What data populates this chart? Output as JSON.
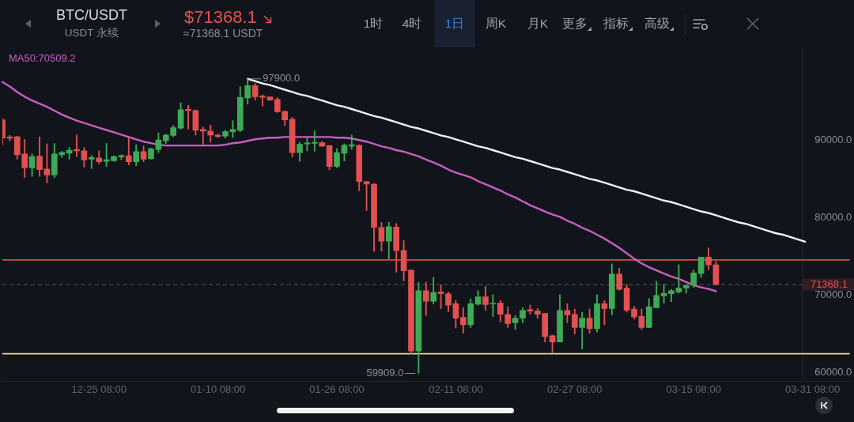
{
  "chart_data": {
    "type": "candlestick",
    "title": "BTC/USDT",
    "subtitle": "USDT 永续",
    "categories": [
      null,
      null,
      null,
      null,
      null,
      null,
      null,
      null,
      null,
      null,
      null,
      null,
      null,
      "12-25 08:00",
      null,
      null,
      null,
      null,
      null,
      null,
      null,
      null,
      null,
      null,
      null,
      null,
      null,
      null,
      null,
      "01-10 08:00",
      null,
      null,
      null,
      null,
      null,
      null,
      null,
      null,
      null,
      null,
      null,
      null,
      null,
      null,
      null,
      "01-26 08:00",
      null,
      null,
      null,
      null,
      null,
      null,
      null,
      null,
      null,
      null,
      null,
      null,
      null,
      null,
      null,
      "02-11 08:00",
      null,
      null,
      null,
      null,
      null,
      null,
      null,
      null,
      null,
      null,
      null,
      null,
      null,
      null,
      null,
      "02-27 08:00",
      null,
      null,
      null,
      null,
      null,
      null,
      null,
      null,
      null,
      null,
      null,
      null,
      null,
      null,
      null,
      "03-15 08:00",
      null,
      null,
      null,
      null,
      null,
      null,
      null,
      null,
      null,
      null,
      null,
      null,
      null,
      null,
      null,
      "03-31 08:00",
      null,
      null,
      null,
      null,
      null
    ],
    "ohlc": [
      [
        92620,
        92800,
        89400,
        90250
      ],
      [
        90400,
        90600,
        89900,
        90250
      ],
      [
        90420,
        90500,
        87530,
        88110
      ],
      [
        88210,
        90080,
        85160,
        86420
      ],
      [
        86420,
        88210,
        85330,
        87870
      ],
      [
        87940,
        90420,
        85330,
        86180
      ],
      [
        86280,
        89500,
        84480,
        85500
      ],
      [
        85500,
        89570,
        85160,
        88210
      ],
      [
        88110,
        88550,
        87770,
        88420
      ],
      [
        88310,
        89060,
        87530,
        88690
      ],
      [
        88790,
        90650,
        87870,
        88620
      ],
      [
        88620,
        89060,
        86520,
        87430
      ],
      [
        87540,
        88040,
        86350,
        87740
      ],
      [
        87700,
        88620,
        86920,
        87200
      ],
      [
        87260,
        89570,
        86590,
        87470
      ],
      [
        87330,
        87980,
        87260,
        87870
      ],
      [
        87810,
        88110,
        87470,
        88010
      ],
      [
        87980,
        90420,
        86790,
        87200
      ],
      [
        87200,
        89400,
        86690,
        88520
      ],
      [
        88520,
        89230,
        87200,
        87540
      ],
      [
        87600,
        88960,
        87530,
        88890
      ],
      [
        88790,
        90930,
        88380,
        90010
      ],
      [
        89910,
        90760,
        89570,
        90650
      ],
      [
        90590,
        91870,
        90420,
        91600
      ],
      [
        91530,
        94820,
        91430,
        93910
      ],
      [
        93980,
        94480,
        91430,
        93810
      ],
      [
        93810,
        93900,
        90650,
        91260
      ],
      [
        91370,
        91670,
        89300,
        91160
      ],
      [
        91160,
        91940,
        89740,
        90650
      ],
      [
        90650,
        90760,
        90310,
        90480
      ],
      [
        90520,
        91260,
        90250,
        91090
      ],
      [
        91090,
        92520,
        90310,
        91370
      ],
      [
        91260,
        96860,
        91090,
        95500
      ],
      [
        95430,
        97900,
        94650,
        97030
      ],
      [
        97030,
        97300,
        95160,
        95600
      ],
      [
        95670,
        95840,
        94380,
        95500
      ],
      [
        95570,
        95600,
        95100,
        95160
      ],
      [
        95230,
        95500,
        93570,
        93640
      ],
      [
        93700,
        93800,
        91870,
        92620
      ],
      [
        92690,
        92960,
        87810,
        88380
      ],
      [
        88380,
        89740,
        87260,
        89470
      ],
      [
        89500,
        90250,
        88620,
        89640
      ],
      [
        89570,
        91200,
        88550,
        89710
      ],
      [
        89670,
        89810,
        89130,
        89230
      ],
      [
        89300,
        89300,
        86180,
        86590
      ],
      [
        86590,
        88890,
        86450,
        88380
      ],
      [
        88310,
        89500,
        87300,
        89330
      ],
      [
        89230,
        90650,
        88820,
        89400
      ],
      [
        89330,
        89400,
        83470,
        84650
      ],
      [
        84650,
        84700,
        80920,
        84320
      ],
      [
        84320,
        84400,
        75670,
        78720
      ],
      [
        78720,
        79400,
        75670,
        76960
      ],
      [
        76960,
        79400,
        74650,
        78820
      ],
      [
        78790,
        79230,
        72960,
        75740
      ],
      [
        75770,
        77030,
        71870,
        73130
      ],
      [
        73230,
        73300,
        62450,
        62790
      ],
      [
        62790,
        71670,
        59909,
        70580
      ],
      [
        70580,
        71670,
        67360,
        69230
      ],
      [
        69230,
        72280,
        68890,
        70350
      ],
      [
        70420,
        71330,
        68280,
        70180
      ],
      [
        70180,
        70420,
        67870,
        68720
      ],
      [
        68890,
        69300,
        65740,
        67030
      ],
      [
        67130,
        68380,
        65090,
        66180
      ],
      [
        66180,
        69500,
        65840,
        68890
      ],
      [
        68840,
        70580,
        68720,
        69790
      ],
      [
        69790,
        71130,
        68040,
        68790
      ],
      [
        68850,
        70080,
        67260,
        68890
      ],
      [
        68960,
        69300,
        66580,
        67530
      ],
      [
        67530,
        68480,
        65840,
        66350
      ],
      [
        66450,
        67360,
        65570,
        67030
      ],
      [
        67030,
        68380,
        66450,
        68040
      ],
      [
        68140,
        68720,
        67530,
        67940
      ],
      [
        67940,
        68280,
        67030,
        67530
      ],
      [
        67640,
        67640,
        63980,
        64650
      ],
      [
        64760,
        64880,
        62520,
        63980
      ],
      [
        63980,
        70080,
        63980,
        68040
      ],
      [
        68040,
        68890,
        66450,
        67470
      ],
      [
        67530,
        68210,
        64990,
        65840
      ],
      [
        65840,
        67810,
        63060,
        67030
      ],
      [
        67030,
        68210,
        65090,
        65670
      ],
      [
        65670,
        70080,
        65230,
        68890
      ],
      [
        68890,
        69300,
        66180,
        68280
      ],
      [
        68280,
        74040,
        67470,
        72720
      ],
      [
        72720,
        73470,
        70650,
        70750
      ],
      [
        70920,
        71330,
        67810,
        68040
      ],
      [
        68210,
        68550,
        66920,
        67200
      ],
      [
        67260,
        68210,
        65570,
        65840
      ],
      [
        65840,
        69570,
        65840,
        68480
      ],
      [
        68380,
        71770,
        68380,
        69970
      ],
      [
        69910,
        71430,
        68960,
        70240
      ],
      [
        70180,
        70750,
        69160,
        70580
      ],
      [
        70420,
        73910,
        70250,
        70920
      ],
      [
        70920,
        71330,
        70250,
        71260
      ],
      [
        71260,
        73230,
        70990,
        72860
      ],
      [
        72790,
        74920,
        72280,
        74920
      ],
      [
        74920,
        76080,
        73300,
        73910
      ],
      [
        73910,
        74380,
        71368.1,
        71368.1
      ],
      null,
      null,
      null,
      null,
      null,
      null,
      null,
      null,
      null,
      null,
      null,
      null,
      null,
      null,
      null,
      null,
      null,
      null
    ],
    "colors": [
      "#e0514f",
      "#e0514f",
      "#e0514f",
      "#e0514f",
      "#3dab55",
      "#e0514f",
      "#e0514f",
      "#3dab55",
      "#3dab55",
      "#3dab55",
      "#e0514f",
      "#e0514f",
      "#3dab55",
      "#e0514f",
      "#3dab55",
      "#3dab55",
      "#3dab55",
      "#e0514f",
      "#3dab55",
      "#e0514f",
      "#3dab55",
      "#3dab55",
      "#3dab55",
      "#3dab55",
      "#3dab55",
      "#e0514f",
      "#e0514f",
      "#e0514f",
      "#e0514f",
      "#e0514f",
      "#3dab55",
      "#3dab55",
      "#3dab55",
      "#3dab55",
      "#e0514f",
      "#e0514f",
      "#e0514f",
      "#e0514f",
      "#e0514f",
      "#e0514f",
      "#3dab55",
      "#3dab55",
      "#3dab55",
      "#e0514f",
      "#e0514f",
      "#3dab55",
      "#3dab55",
      "#3dab55",
      "#e0514f",
      "#e0514f",
      "#e0514f",
      "#e0514f",
      "#3dab55",
      "#e0514f",
      "#e0514f",
      "#e0514f",
      "#3dab55",
      "#e0514f",
      "#3dab55",
      "#e0514f",
      "#e0514f",
      "#e0514f",
      "#e0514f",
      "#3dab55",
      "#3dab55",
      "#e0514f",
      "#3dab55",
      "#e0514f",
      "#e0514f",
      "#3dab55",
      "#3dab55",
      "#e0514f",
      "#e0514f",
      "#e0514f",
      "#e0514f",
      "#3dab55",
      "#e0514f",
      "#e0514f",
      "#3dab55",
      "#e0514f",
      "#3dab55",
      "#e0514f",
      "#3dab55",
      "#e0514f",
      "#e0514f",
      "#e0514f",
      "#e0514f",
      "#3dab55",
      "#3dab55",
      "#3dab55",
      "#3dab55",
      "#3dab55",
      "#3dab55",
      "#3dab55",
      "#3dab55",
      "#e0514f",
      "#e0514f",
      null,
      null,
      null,
      null,
      null,
      null,
      null,
      null,
      null,
      null,
      null,
      null,
      null,
      null,
      null,
      null,
      null,
      null
    ],
    "series": [
      {
        "type": "line",
        "name": "MA50:70509.2",
        "color": "#c85fbf",
        "values": [
          97500,
          96900,
          96200,
          95600,
          95100,
          94700,
          94300,
          93800,
          93300,
          92900,
          92500,
          92200,
          91900,
          91600,
          91300,
          91000,
          90700,
          90400,
          90100,
          89800,
          89600,
          89400,
          89300,
          89300,
          89300,
          89300,
          89300,
          89300,
          89300,
          89300,
          89400,
          89600,
          89700,
          89900,
          90100,
          90200,
          90300,
          90300,
          90400,
          90400,
          90400,
          90400,
          90400,
          90400,
          90400,
          90300,
          90300,
          90200,
          90000,
          89800,
          89500,
          89200,
          89000,
          88700,
          88500,
          88200,
          87900,
          87500,
          87100,
          86700,
          86200,
          85800,
          85500,
          85200,
          84700,
          84300,
          83900,
          83500,
          83000,
          82600,
          82100,
          81600,
          81200,
          80800,
          80400,
          80100,
          79600,
          79200,
          78700,
          78300,
          77800,
          77300,
          76700,
          76100,
          75400,
          74700,
          74100,
          73600,
          73200,
          72800,
          72400,
          72100,
          71700,
          71300,
          71000,
          70800,
          70509.2,
          null,
          null,
          null,
          null,
          null,
          null,
          null,
          null,
          null,
          null,
          null,
          null,
          null,
          null,
          null,
          null,
          null,
          null
        ]
      },
      {
        "type": "line",
        "color": "#f2f2f2",
        "values": [
          null,
          null,
          null,
          null,
          null,
          null,
          null,
          null,
          null,
          null,
          null,
          null,
          null,
          null,
          null,
          null,
          null,
          null,
          null,
          null,
          null,
          null,
          null,
          null,
          null,
          null,
          null,
          null,
          null,
          null,
          null,
          null,
          null,
          97900,
          97600,
          97300,
          97100,
          96800,
          96500,
          96200,
          95900,
          95700,
          95400,
          95100,
          94800,
          94500,
          94300,
          94000,
          93700,
          93400,
          93100,
          92900,
          92600,
          92300,
          92000,
          91700,
          91500,
          91200,
          90900,
          90600,
          90400,
          90100,
          89800,
          89500,
          89200,
          89000,
          88700,
          88400,
          88100,
          87800,
          87600,
          87300,
          87000,
          86700,
          86400,
          86200,
          85900,
          85600,
          85300,
          85000,
          84800,
          84500,
          84200,
          83900,
          83600,
          83400,
          83100,
          82800,
          82500,
          82200,
          82000,
          81700,
          81400,
          81100,
          80800,
          80600,
          80300,
          80000,
          79700,
          79400,
          79200,
          78900,
          78600,
          78300,
          78000,
          77800,
          77500,
          77200,
          76900,
          null,
          null,
          null,
          null,
          null,
          null
        ]
      }
    ],
    "ylim": [
      58900,
      101900
    ],
    "yticks": [
      {
        "value": 60000,
        "label": "60000.0"
      },
      {
        "value": 70000,
        "label": "70000.0"
      },
      {
        "value": 80000,
        "label": "80000.0"
      },
      {
        "value": 90000,
        "label": "90000.0"
      }
    ],
    "ref_lines": [
      {
        "axis": "y",
        "value": 74550,
        "color": "#d8454a"
      },
      {
        "axis": "y",
        "value": 62450,
        "color": "#e3e07a"
      },
      {
        "axis": "y",
        "value": 71368.1,
        "label": "71368.1",
        "color": "#555862",
        "line_style": "dashed"
      }
    ],
    "legend": "top left",
    "annotations": [
      "$71368.1",
      "≈71368.1 USDT",
      "1时",
      "4时",
      "1日",
      "周K",
      "月K",
      "更多",
      "指标",
      "高级",
      "97900.0",
      "59909.0"
    ]
  }
}
